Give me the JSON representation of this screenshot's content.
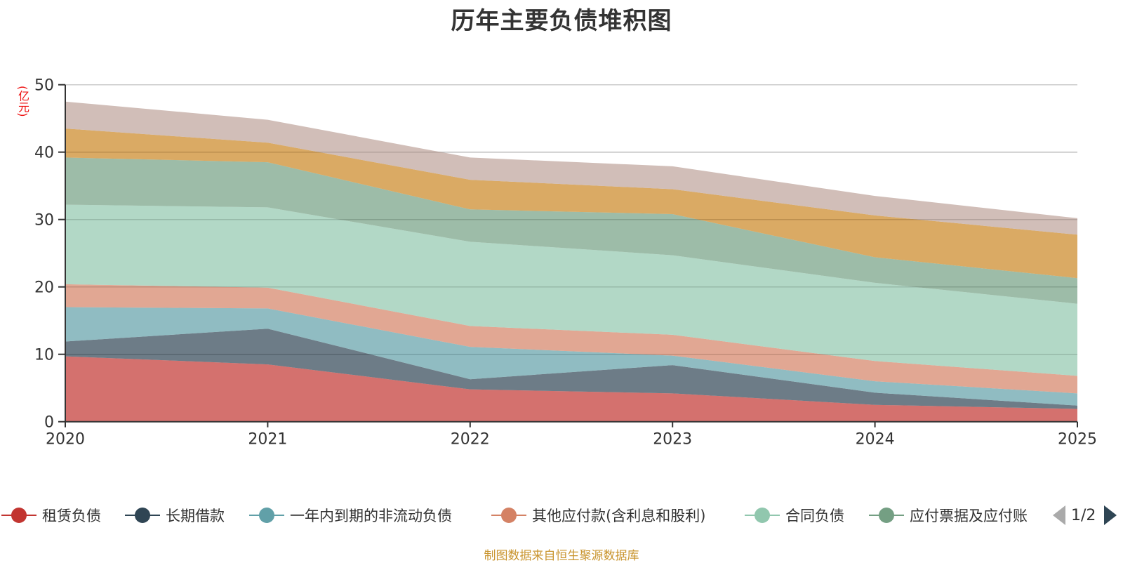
{
  "chart_data": {
    "type": "area",
    "stacked": true,
    "title": "历年主要负债堆积图",
    "ylabel": "(亿元)",
    "xlabel": "",
    "x": [
      "2020",
      "2021",
      "2022",
      "2023",
      "2024",
      "2025"
    ],
    "ylim": [
      0,
      50
    ],
    "yticks": [
      0,
      10,
      20,
      30,
      40,
      50
    ],
    "grid": true,
    "legend_position": "bottom",
    "series": [
      {
        "name": "租赁负债",
        "color": "#c23531",
        "values": [
          9.7,
          8.5,
          4.8,
          4.2,
          2.5,
          1.9
        ]
      },
      {
        "name": "长期借款",
        "color": "#2f4554",
        "values": [
          2.2,
          5.3,
          1.5,
          4.2,
          1.8,
          0.5
        ]
      },
      {
        "name": "一年内到期的非流动负债",
        "color": "#61a0a8",
        "values": [
          5.1,
          3.0,
          4.8,
          1.4,
          1.7,
          1.8
        ]
      },
      {
        "name": "其他应付款(含利息和股利)",
        "color": "#d48265",
        "values": [
          3.4,
          3.1,
          3.1,
          3.1,
          3.0,
          2.6
        ]
      },
      {
        "name": "合同负债",
        "color": "#91c7ae",
        "values": [
          11.8,
          11.9,
          12.5,
          11.8,
          11.6,
          10.7
        ]
      },
      {
        "name": "应付票据及应付账款",
        "color": "#749f83",
        "values": [
          7.0,
          6.7,
          4.8,
          6.1,
          3.8,
          3.8
        ]
      },
      {
        "name": "",
        "color": "#ca8622",
        "values": [
          4.3,
          2.9,
          4.4,
          3.7,
          6.2,
          6.45
        ]
      },
      {
        "name": "",
        "color": "#bda29a",
        "values": [
          4.0,
          3.4,
          3.3,
          3.4,
          2.9,
          2.45
        ]
      }
    ]
  },
  "legend": {
    "items": [
      {
        "label": "租赁负债",
        "color": "#c23531"
      },
      {
        "label": "长期借款",
        "color": "#2f4554"
      },
      {
        "label": "一年内到期的非流动负债",
        "color": "#61a0a8"
      },
      {
        "label": "其他应付款(含利息和股利)",
        "color": "#d48265"
      },
      {
        "label": "合同负债",
        "color": "#91c7ae"
      },
      {
        "label": "应付票据及应付账",
        "color": "#749f83"
      }
    ],
    "pager": "1/2"
  },
  "footer": "制图数据来自恒生聚源数据库"
}
